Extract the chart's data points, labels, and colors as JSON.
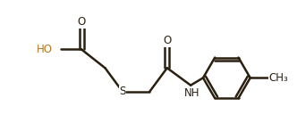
{
  "bg_color": "#ffffff",
  "bond_color": "#2a2010",
  "text_color": "#2a2010",
  "ho_color": "#b87820",
  "lw": 1.8,
  "fs": 8.5,
  "fig_width": 3.32,
  "fig_height": 1.47,
  "dpi": 100,
  "xlim": [
    -0.2,
    10.0
  ],
  "ylim": [
    -0.3,
    5.0
  ]
}
